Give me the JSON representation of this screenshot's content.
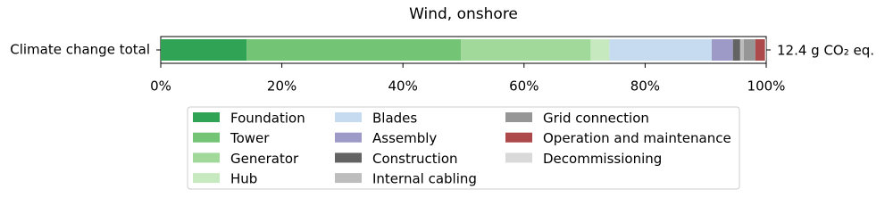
{
  "chart_data": {
    "type": "stacked_barh",
    "title": "Wind, onshore",
    "categories": [
      "Climate change total"
    ],
    "annotation": "12.4 g CO₂ eq.",
    "series": [
      {
        "name": "Foundation",
        "color": "#31a354",
        "values": [
          14.2
        ]
      },
      {
        "name": "Tower",
        "color": "#74c476",
        "values": [
          35.4
        ]
      },
      {
        "name": "Generator",
        "color": "#a1d99b",
        "values": [
          21.4
        ]
      },
      {
        "name": "Hub",
        "color": "#c7e9c0",
        "values": [
          3.1
        ]
      },
      {
        "name": "Blades",
        "color": "#c6dbef",
        "values": [
          16.9
        ]
      },
      {
        "name": "Assembly",
        "color": "#9e9ac8",
        "values": [
          3.5
        ]
      },
      {
        "name": "Construction",
        "color": "#636363",
        "values": [
          1.2
        ]
      },
      {
        "name": "Internal cabling",
        "color": "#bdbdbd",
        "values": [
          0.6
        ]
      },
      {
        "name": "Grid connection",
        "color": "#969696",
        "values": [
          1.9
        ]
      },
      {
        "name": "Operation and maintenance",
        "color": "#ad494a",
        "values": [
          1.6
        ]
      },
      {
        "name": "Decommissioning",
        "color": "#d9d9d9",
        "values": [
          0.2
        ]
      }
    ],
    "xlim": [
      0,
      100
    ],
    "xticks": [
      {
        "value": 0,
        "label": "0%"
      },
      {
        "value": 20,
        "label": "20%"
      },
      {
        "value": 40,
        "label": "40%"
      },
      {
        "value": 60,
        "label": "60%"
      },
      {
        "value": 80,
        "label": "80%"
      },
      {
        "value": 100,
        "label": "100%"
      }
    ]
  }
}
